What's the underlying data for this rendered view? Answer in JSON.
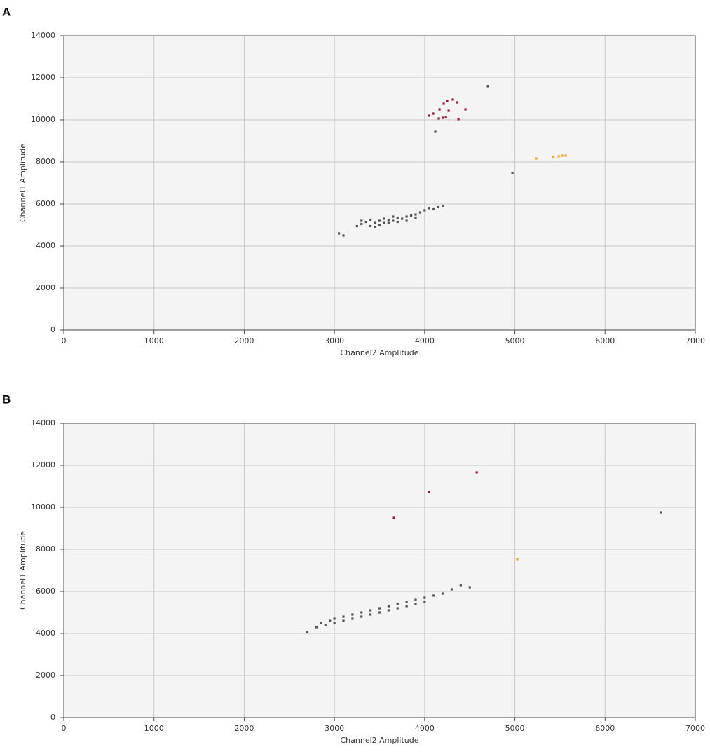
{
  "chart_data": [
    {
      "type": "scatter",
      "title": "A",
      "x_label": "Channel2 Amplitude",
      "y_label": "Channel1 Amplitude",
      "xlim": [
        0,
        7000
      ],
      "ylim": [
        0,
        14000
      ],
      "xticks": [
        0,
        1000,
        2000,
        3000,
        4000,
        5000,
        6000,
        7000
      ],
      "yticks": [
        0,
        2000,
        4000,
        6000,
        8000,
        10000,
        12000,
        14000
      ],
      "grid": true,
      "series": [
        {
          "color": "#555555",
          "x": [
            3050,
            3100,
            3250,
            3300,
            3350,
            3400,
            3450,
            3500,
            3500,
            3550,
            3600,
            3600,
            3650,
            3700,
            3700,
            3750,
            3800,
            3800,
            3850,
            3900,
            3900,
            3950,
            4000,
            4050,
            4100,
            4150,
            4200,
            3400,
            3550,
            3650,
            3300,
            3450,
            4701,
            4118,
            4973
          ],
          "y": [
            4600,
            4500,
            4950,
            5050,
            5150,
            4950,
            5100,
            5200,
            5000,
            5300,
            5100,
            5250,
            5200,
            5350,
            5150,
            5300,
            5400,
            5200,
            5450,
            5500,
            5350,
            5600,
            5700,
            5800,
            5750,
            5850,
            5900,
            5250,
            5100,
            5400,
            5200,
            4900,
            11600,
            9433,
            7467
          ]
        },
        {
          "color": "#9e1a3a",
          "x": [
            4048,
            4095,
            4165,
            4211,
            4250,
            4312,
            4359,
            4452,
            4157,
            4204,
            4235,
            4266,
            4375
          ],
          "y": [
            10200,
            10300,
            10500,
            10767,
            10900,
            10967,
            10833,
            10500,
            10067,
            10100,
            10133,
            10433,
            10033
          ]
        },
        {
          "color": "#f0a830",
          "x": [
            5237,
            5423,
            5486,
            5524,
            5563
          ],
          "y": [
            8167,
            8233,
            8267,
            8300,
            8300
          ]
        }
      ]
    },
    {
      "type": "scatter",
      "title": "B",
      "x_label": "Channel2 Amplitude",
      "y_label": "Channel1 Amplitude",
      "xlim": [
        0,
        7000
      ],
      "ylim": [
        0,
        14000
      ],
      "xticks": [
        0,
        1000,
        2000,
        3000,
        4000,
        5000,
        6000,
        7000
      ],
      "yticks": [
        0,
        2000,
        4000,
        6000,
        8000,
        10000,
        12000,
        14000
      ],
      "grid": true,
      "series": [
        {
          "color": "#555555",
          "x": [
            2700,
            2800,
            2850,
            2900,
            2950,
            3000,
            3000,
            3100,
            3100,
            3200,
            3200,
            3300,
            3300,
            3400,
            3400,
            3500,
            3500,
            3600,
            3600,
            3700,
            3700,
            3800,
            3800,
            3900,
            3900,
            4000,
            4000,
            4100,
            4200,
            4300,
            4400,
            4500,
            6620
          ],
          "y": [
            4050,
            4300,
            4500,
            4400,
            4600,
            4700,
            4500,
            4800,
            4600,
            4900,
            4700,
            5000,
            4800,
            5100,
            4900,
            5200,
            5000,
            5300,
            5100,
            5400,
            5200,
            5500,
            5300,
            5600,
            5400,
            5700,
            5500,
            5800,
            5900,
            6100,
            6300,
            6200,
            9767
          ]
        },
        {
          "color": "#9e1a3a",
          "x": [
            3660,
            4048,
            4577
          ],
          "y": [
            9500,
            10733,
            11667
          ]
        },
        {
          "color": "#f0a830",
          "x": [
            5027
          ],
          "y": [
            7533
          ]
        }
      ]
    }
  ]
}
